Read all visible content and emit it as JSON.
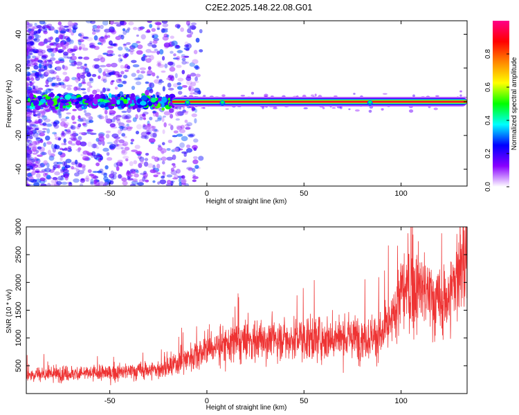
{
  "title": "C2E2.2025.148.22.08.G01",
  "colors": {
    "snr_line": "#ee3333",
    "center_band": "#ee2222",
    "axis": "#000000"
  },
  "chart_data": [
    {
      "type": "heatmap",
      "xlabel": "Height of straight line (km)",
      "ylabel": "Frequency (Hz)",
      "xlim": [
        -93,
        134
      ],
      "ylim": [
        -50,
        48
      ],
      "xticks": [
        -50,
        0,
        50,
        100
      ],
      "yticks": [
        -40,
        -20,
        0,
        20,
        40
      ],
      "colorbar": {
        "label": "Normalized spectral amplitude",
        "range": [
          0,
          1
        ],
        "ticks": [
          "0.0",
          "0.2",
          "0.4",
          "0.6",
          "0.8"
        ],
        "tick_values": [
          0.0,
          0.2,
          0.4,
          0.6,
          0.8
        ],
        "colormap": [
          "#ffffff",
          "#8800ff",
          "#0000ff",
          "#00ffff",
          "#00ff00",
          "#ffff00",
          "#ff8800",
          "#ff0000",
          "#ff0088"
        ]
      },
      "features": {
        "carrier_frequency_hz": 0,
        "stable_from_km": -18,
        "noisy_until_km": -20
      }
    },
    {
      "type": "line",
      "xlabel": "Height of straight line (km)",
      "ylabel": "SNR (10 * v/v)",
      "xlim": [
        -93,
        134
      ],
      "ylim": [
        0,
        3000
      ],
      "xticks": [
        -50,
        0,
        50,
        100
      ],
      "yticks": [
        500,
        1000,
        1500,
        2000,
        2500,
        3000
      ],
      "series": [
        {
          "trend_x": [
            -93,
            -50,
            -20,
            -10,
            0,
            10,
            30,
            50,
            70,
            90,
            95,
            100,
            110,
            120,
            125,
            130,
            134
          ],
          "trend_y": [
            350,
            370,
            450,
            650,
            800,
            900,
            980,
            1000,
            1000,
            1050,
            1250,
            1850,
            1900,
            1600,
            1750,
            2300,
            2300
          ]
        }
      ]
    }
  ]
}
